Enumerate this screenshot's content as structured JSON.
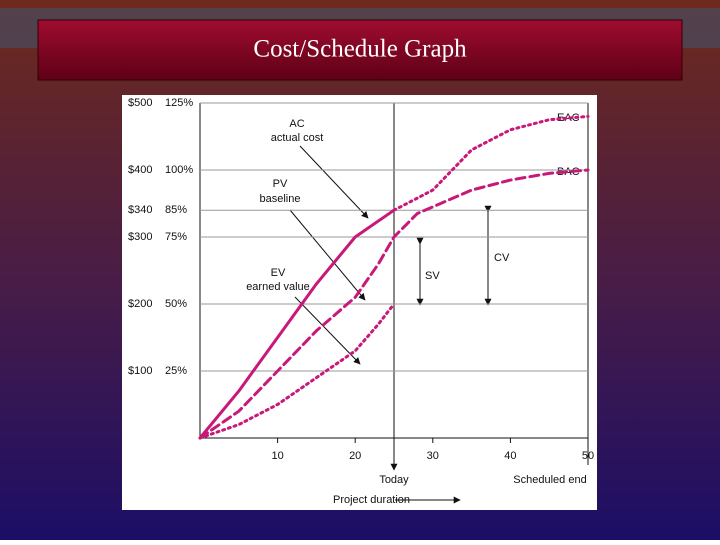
{
  "slide_title": "Cost/Schedule Graph",
  "chart_data": {
    "type": "line",
    "series": [
      {
        "color": "#c8187a",
        "dash": "solid",
        "x": [
          0,
          5,
          10,
          15,
          20,
          25
        ],
        "values": [
          0,
          70,
          150,
          230,
          300,
          340
        ]
      },
      {
        "color": "#c8187a",
        "dash": "dotted",
        "x": [
          25,
          30,
          35,
          40,
          45,
          50
        ],
        "values": [
          340,
          370,
          430,
          460,
          475,
          480
        ]
      },
      {
        "color": "#c8187a",
        "dash": "dashed",
        "x": [
          0,
          5,
          10,
          15,
          20,
          23,
          25,
          28,
          30,
          35,
          40,
          45,
          50
        ],
        "values": [
          0,
          40,
          100,
          160,
          210,
          260,
          300,
          335,
          345,
          370,
          385,
          395,
          400
        ]
      },
      {
        "color": "#c8187a",
        "dash": "dotted",
        "x": [
          0,
          5,
          10,
          15,
          20,
          23,
          25
        ],
        "values": [
          0,
          20,
          50,
          90,
          130,
          170,
          200
        ]
      }
    ],
    "xlim": [
      0,
      50
    ],
    "xticks": [
      10,
      20,
      30,
      40,
      50
    ],
    "ylim": [
      0,
      500
    ],
    "yticks": [
      {
        "value": 100,
        "label": "$100"
      },
      {
        "value": 200,
        "label": "$200"
      },
      {
        "value": 300,
        "label": "$300"
      },
      {
        "value": 340,
        "label": "$340"
      },
      {
        "value": 400,
        "label": "$400"
      },
      {
        "value": 500,
        "label": "$500"
      }
    ],
    "y2lim": [
      0,
      125
    ],
    "y2ticks": [
      {
        "value": 25,
        "label": "25%"
      },
      {
        "value": 50,
        "label": "50%"
      },
      {
        "value": 75,
        "label": "75%"
      },
      {
        "value": 85,
        "label": "85%"
      },
      {
        "value": 100,
        "label": "100%"
      },
      {
        "value": 125,
        "label": "125%"
      }
    ],
    "grid": true,
    "annotations": [
      "AC",
      "actual cost",
      "PV",
      "baseline",
      "EV",
      "earned value",
      "EAC",
      "BAC",
      "CV",
      "SV",
      "Today",
      "Scheduled end",
      "Project duration"
    ]
  }
}
